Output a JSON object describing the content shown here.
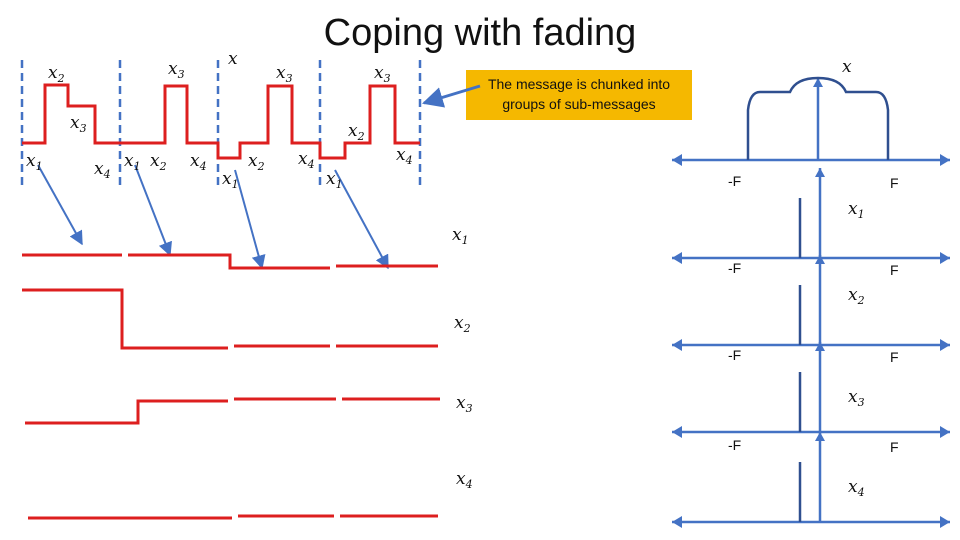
{
  "slide": {
    "title": "Coping with fading",
    "callout": {
      "line1": "The message is chunked into",
      "line2": "groups of sub-messages"
    }
  },
  "labels": {
    "x": "x",
    "x1": "x",
    "x2": "x",
    "x3": "x",
    "x4": "x",
    "sub1": "1",
    "sub2": "2",
    "sub3": "3",
    "sub4": "4",
    "neg_f": "-F",
    "pos_f": "F"
  },
  "colors": {
    "signal": "#dd1f1f",
    "spectrum": "#2f4f8f",
    "axis": "#4472c4",
    "callout": "#f5b800"
  }
}
